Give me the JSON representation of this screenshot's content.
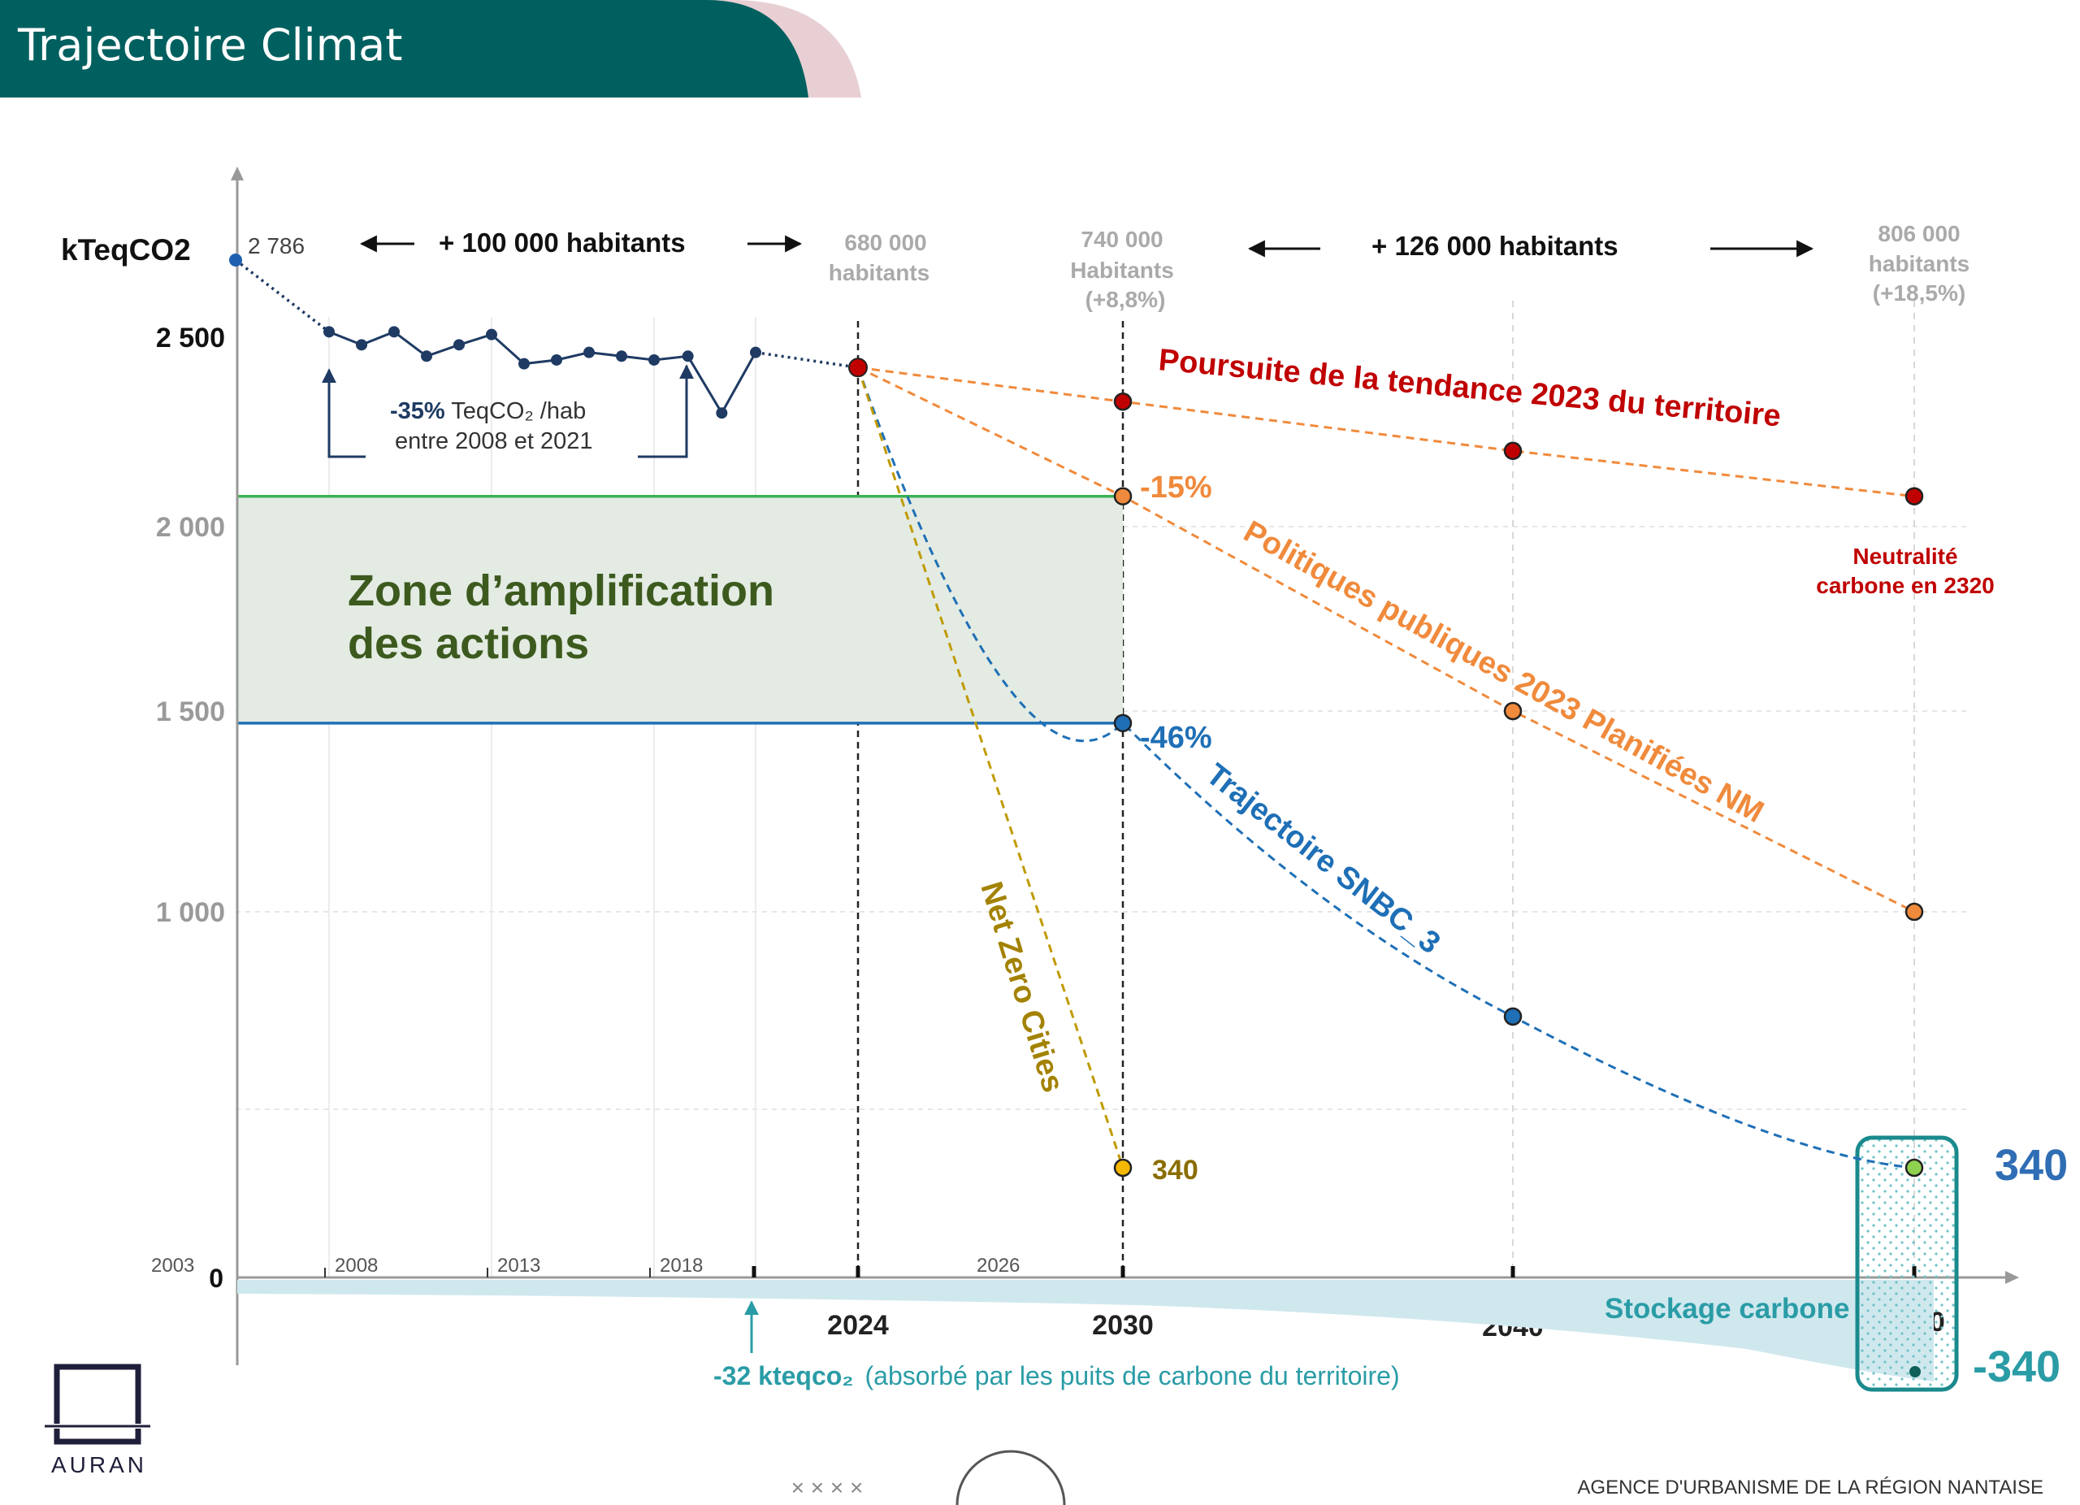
{
  "header": {
    "title": "Trajectoire Climat"
  },
  "logo": {
    "text": "AURAN"
  },
  "footer": {
    "agency": "AGENCE D'URBANISME DE LA RÉGION NANTAISE",
    "pager_marks": "× × × ×"
  },
  "colors": {
    "header_bg": "#00605f",
    "header_accent": "#e8cfd3",
    "history": "#1f3b63",
    "tendance": "#c00000",
    "politiques": "#f08a3c",
    "snbc": "#1e6fb6",
    "netzero": "#c09a00",
    "zone_fill": "#e3ebe3",
    "zone_top": "#3cb054",
    "zone_bottom": "#1e6fb6",
    "stockage": "#2a9ca6",
    "target_green": "#8fd14f"
  },
  "chart_data": {
    "type": "line",
    "ylabel": "kTeqCO2",
    "y_ticks": [
      {
        "value": 0,
        "label": "0"
      },
      {
        "value": 1000,
        "label": "1 000"
      },
      {
        "value": 1500,
        "label": "1 500"
      },
      {
        "value": 2000,
        "label": "2 000"
      },
      {
        "value": 2500,
        "label": "2 500"
      }
    ],
    "x_ticks_small": [
      {
        "x": 2003,
        "label": "2003"
      },
      {
        "x": 2008,
        "label": "2008"
      },
      {
        "x": 2013,
        "label": "2013"
      },
      {
        "x": 2018,
        "label": "2018"
      },
      {
        "x": 2026,
        "label": "2026"
      }
    ],
    "x_ticks_major": [
      {
        "x": 2024,
        "label": "2024"
      },
      {
        "x": 2030,
        "label": "2030"
      },
      {
        "x": 2040,
        "label": "2040"
      },
      {
        "x": 2050,
        "label": "2050"
      }
    ],
    "start_label": "2 786",
    "history": {
      "points": [
        {
          "x": 2003,
          "y": 2786
        },
        {
          "x": 2008,
          "y": 2520
        },
        {
          "x": 2009,
          "y": 2480
        },
        {
          "x": 2010,
          "y": 2520
        },
        {
          "x": 2011,
          "y": 2450
        },
        {
          "x": 2012,
          "y": 2480
        },
        {
          "x": 2013,
          "y": 2510
        },
        {
          "x": 2014,
          "y": 2430
        },
        {
          "x": 2015,
          "y": 2440
        },
        {
          "x": 2016,
          "y": 2460
        },
        {
          "x": 2017,
          "y": 2450
        },
        {
          "x": 2018,
          "y": 2440
        },
        {
          "x": 2019,
          "y": 2450
        },
        {
          "x": 2020,
          "y": 2300
        },
        {
          "x": 2021,
          "y": 2460
        },
        {
          "x": 2024,
          "y": 2420
        }
      ]
    },
    "series": [
      {
        "name": "Poursuite de la tendance 2023 du territoire",
        "key": "tendance",
        "points": [
          {
            "x": 2024,
            "y": 2420
          },
          {
            "x": 2030,
            "y": 2330
          },
          {
            "x": 2040,
            "y": 2200
          },
          {
            "x": 2050,
            "y": 2080
          }
        ]
      },
      {
        "name": "Politiques publiques 2023 Planifiées NM",
        "key": "politiques",
        "points": [
          {
            "x": 2024,
            "y": 2420
          },
          {
            "x": 2030,
            "y": 2080
          },
          {
            "x": 2040,
            "y": 1500
          },
          {
            "x": 2050,
            "y": 1000
          }
        ]
      },
      {
        "name": "Trajectoire SNBC_3",
        "key": "snbc",
        "points": [
          {
            "x": 2024,
            "y": 2420
          },
          {
            "x": 2030,
            "y": 1470
          },
          {
            "x": 2040,
            "y": 730
          },
          {
            "x": 2050,
            "y": 340
          }
        ]
      },
      {
        "name": "Net Zero Cities",
        "key": "netzero",
        "points": [
          {
            "x": 2024,
            "y": 2420
          },
          {
            "x": 2030,
            "y": 340
          }
        ]
      }
    ],
    "zone": {
      "label_line1": "Zone d’amplification",
      "label_line2": "des actions",
      "y_top": 2080,
      "y_bottom": 1470,
      "x_end": 2030
    },
    "annotations": {
      "pop_growth_1": "+ 100 000 habitants",
      "pop_growth_2": "+ 126 000 habitants",
      "pop_2024": [
        "680 000",
        "habitants"
      ],
      "pop_2030": [
        "740 000",
        "Habitants",
        "(+8,8%)"
      ],
      "pop_2050": [
        "806 000",
        "habitants",
        "(+18,5%)"
      ],
      "per_hab_bold": "-35%",
      "per_hab_rest": " TeqCO₂ /hab",
      "per_hab_line2": "entre 2008 et 2021",
      "pct_15": "-15%",
      "pct_46": "-46%",
      "nz_value": "340",
      "target_340": "340",
      "target_neg340": "-340",
      "neutralite_1": "Neutralité",
      "neutralite_2": "carbone en 2320",
      "stockage": "Stockage carbone",
      "puits_bold": "-32 kteqco₂",
      "puits_rest": "(absorbé par les puits de carbone du territoire)"
    }
  }
}
